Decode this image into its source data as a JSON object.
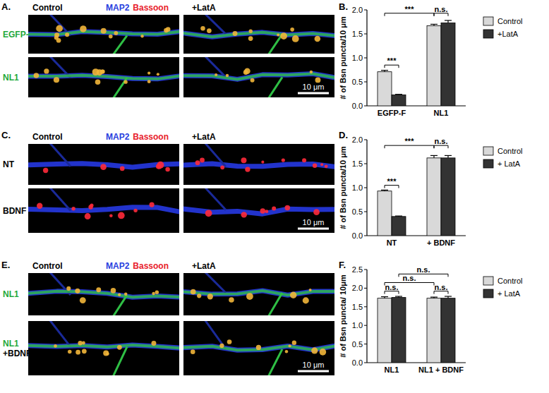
{
  "panel_labels": [
    "A.",
    "B.",
    "C.",
    "D.",
    "E.",
    "F."
  ],
  "image_panels": [
    {
      "header": {
        "left": "Control",
        "stains": [
          {
            "text": "MAP2",
            "color": "#2a3fe0"
          },
          {
            "text": "Bassoon",
            "color": "#e8202a"
          }
        ],
        "right": "+LatA"
      },
      "rows": [
        [
          {
            "text": "EGFP-F",
            "color": "#1fa83a"
          }
        ],
        [
          {
            "text": "NL1",
            "color": "#1fa83a"
          }
        ]
      ],
      "green": true,
      "scale_bar": "10 μm"
    },
    {
      "header": {
        "left": "Control",
        "stains": [
          {
            "text": "MAP2",
            "color": "#2a3fe0"
          },
          {
            "text": "Bassoon",
            "color": "#e8202a"
          }
        ],
        "right": "+LatA"
      },
      "rows": [
        [
          {
            "text": "NT",
            "color": "#000000"
          }
        ],
        [
          {
            "text": "BDNF",
            "color": "#000000"
          }
        ]
      ],
      "green": false,
      "scale_bar": "10 μm"
    },
    {
      "header": {
        "left": "Control",
        "stains": [
          {
            "text": "MAP2",
            "color": "#2a3fe0"
          },
          {
            "text": "Bassoon",
            "color": "#e8202a"
          }
        ],
        "right": "+LatA"
      },
      "rows": [
        [
          {
            "text": "NL1",
            "color": "#1fa83a"
          }
        ],
        [
          {
            "text": "NL1",
            "color": "#1fa83a"
          },
          {
            "text": "+BDNF",
            "color": "#000000"
          }
        ]
      ],
      "green": true,
      "scale_bar": "10 μm"
    }
  ],
  "chart_data": [
    {
      "type": "bar",
      "y_label": "# of Bsn puncta/10 μm",
      "categories": [
        "EGFP-F",
        "NL1"
      ],
      "series": [
        {
          "name": "Control",
          "color": "#d9d9d9",
          "values": [
            0.71,
            1.67
          ],
          "errors": [
            0.03,
            0.03
          ]
        },
        {
          "name": "+LatA",
          "color": "#333333",
          "values": [
            0.23,
            1.73
          ],
          "errors": [
            0.01,
            0.05
          ]
        }
      ],
      "ylim": [
        0,
        2.0
      ],
      "yticks": [
        {
          "value": 0,
          "label": "0.0"
        },
        {
          "value": 0.5,
          "label": "0.5"
        },
        {
          "value": 1.0,
          "label": "1.0"
        },
        {
          "value": 1.5,
          "label": "1.5"
        },
        {
          "value": 2.0,
          "label": "2.0"
        }
      ],
      "legend": "right",
      "annotations": [
        {
          "text": "***",
          "from": [
            0,
            0
          ],
          "to": [
            1,
            0
          ],
          "y": 1.93
        },
        {
          "text": "***",
          "from": [
            0,
            0
          ],
          "to": [
            0,
            1
          ],
          "y": 0.85
        },
        {
          "text": "n.s.",
          "from": [
            1,
            0
          ],
          "to": [
            1,
            1
          ],
          "y": 1.93
        }
      ]
    },
    {
      "type": "bar",
      "y_label": "# of Bsn puncta/10 μm",
      "categories": [
        "NT",
        "+ BDNF"
      ],
      "series": [
        {
          "name": "Control",
          "color": "#d9d9d9",
          "values": [
            0.93,
            1.62
          ],
          "errors": [
            0.02,
            0.05
          ]
        },
        {
          "name": "+ LatA",
          "color": "#333333",
          "values": [
            0.4,
            1.62
          ],
          "errors": [
            0.01,
            0.05
          ]
        }
      ],
      "ylim": [
        0,
        2.0
      ],
      "yticks": [
        {
          "value": 0,
          "label": "0.0"
        },
        {
          "value": 0.5,
          "label": "0.5"
        },
        {
          "value": 1.0,
          "label": "1.0"
        },
        {
          "value": 1.5,
          "label": "1.5"
        },
        {
          "value": 2.0,
          "label": "2.0"
        }
      ],
      "legend": "right",
      "annotations": [
        {
          "text": "***",
          "from": [
            0,
            0
          ],
          "to": [
            1,
            0
          ],
          "y": 1.88
        },
        {
          "text": "***",
          "from": [
            0,
            0
          ],
          "to": [
            0,
            1
          ],
          "y": 1.05
        },
        {
          "text": "n.s.",
          "from": [
            1,
            0
          ],
          "to": [
            1,
            1
          ],
          "y": 1.88
        }
      ]
    },
    {
      "type": "bar",
      "y_label": "# of Bsn puncta/ 10μm",
      "categories": [
        "NL1",
        "NL1 + BDNF"
      ],
      "series": [
        {
          "name": "Control",
          "color": "#d9d9d9",
          "values": [
            1.73,
            1.73
          ],
          "errors": [
            0.04,
            0.03
          ]
        },
        {
          "name": "+ LatA",
          "color": "#333333",
          "values": [
            1.75,
            1.73
          ],
          "errors": [
            0.03,
            0.05
          ]
        }
      ],
      "ylim": [
        0,
        2.5
      ],
      "yticks": [
        {
          "value": 0,
          "label": "0.0"
        },
        {
          "value": 0.5,
          "label": "0.5"
        },
        {
          "value": 1.0,
          "label": "1.0"
        },
        {
          "value": 1.5,
          "label": "1.5"
        },
        {
          "value": 2.0,
          "label": "2.0"
        },
        {
          "value": 2.5,
          "label": "2.5"
        }
      ],
      "legend": "right",
      "annotations": [
        {
          "text": "n.s.",
          "from": [
            0,
            0
          ],
          "to": [
            0,
            1
          ],
          "y": 1.92
        },
        {
          "text": "n.s.",
          "from": [
            1,
            0
          ],
          "to": [
            1,
            1
          ],
          "y": 1.92
        },
        {
          "text": "n.s.",
          "from": [
            0,
            0
          ],
          "to": [
            1,
            0
          ],
          "y": 2.15
        },
        {
          "text": "n.s.",
          "from": [
            0,
            1
          ],
          "to": [
            1,
            1
          ],
          "y": 2.38
        }
      ]
    }
  ]
}
